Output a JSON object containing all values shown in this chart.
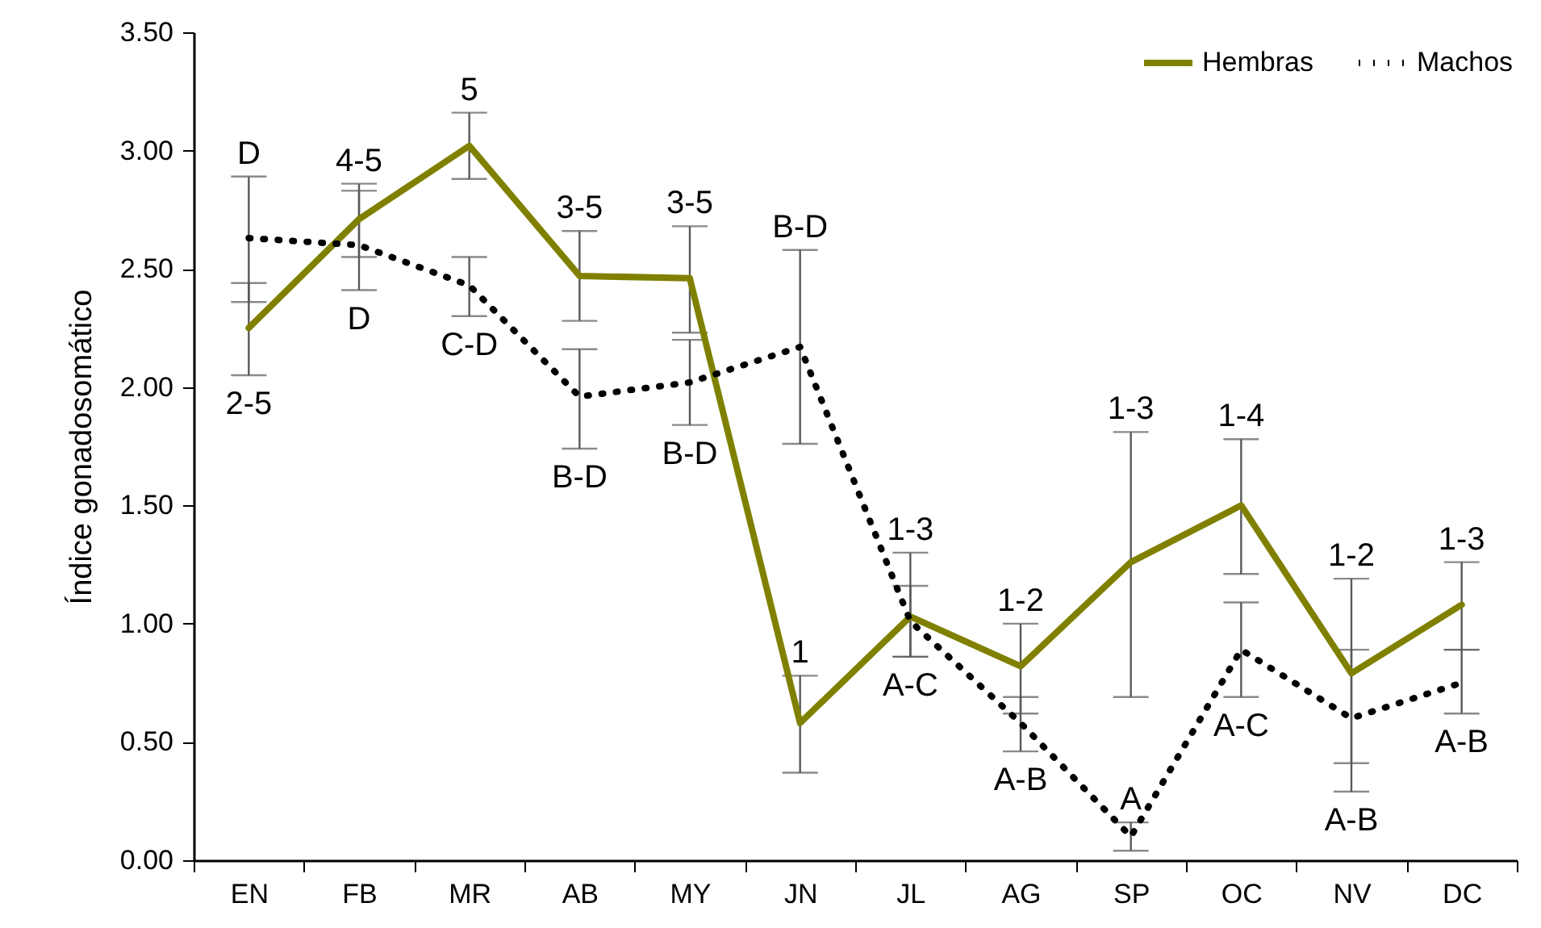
{
  "chart_data": {
    "type": "line",
    "ylabel": "Índice gonadosomático",
    "categories": [
      "EN",
      "FB",
      "MR",
      "AB",
      "MY",
      "JN",
      "JL",
      "AG",
      "SP",
      "OC",
      "NV",
      "DC"
    ],
    "ylim": [
      0,
      3.5
    ],
    "yticks": [
      {
        "value": 0,
        "label": "0.00"
      },
      {
        "value": 0.5,
        "label": "0.50"
      },
      {
        "value": 1,
        "label": "1.00"
      },
      {
        "value": 1.5,
        "label": "1.50"
      },
      {
        "value": 2,
        "label": "2.00"
      },
      {
        "value": 2.5,
        "label": "2.50"
      },
      {
        "value": 3,
        "label": "3.00"
      },
      {
        "value": 3.5,
        "label": "3.50"
      }
    ],
    "series": [
      {
        "name": "Hembras",
        "color": "#808000",
        "line_style": "solid",
        "values": [
          2.25,
          2.71,
          3.02,
          2.47,
          2.46,
          0.58,
          1.03,
          0.82,
          1.26,
          1.5,
          0.79,
          1.08
        ],
        "errors": [
          [
            2.05,
            2.44
          ],
          [
            2.55,
            2.86
          ],
          [
            2.88,
            3.16
          ],
          [
            2.28,
            2.66
          ],
          [
            2.23,
            2.68
          ],
          [
            0.37,
            0.78
          ],
          [
            0.86,
            1.3
          ],
          [
            0.62,
            1.0
          ],
          [
            0.69,
            1.81
          ],
          [
            1.21,
            1.78
          ],
          [
            0.41,
            1.19
          ],
          [
            0.89,
            1.26
          ]
        ]
      },
      {
        "name": "Machos",
        "color": "#000000",
        "line_style": "dotted",
        "values": [
          2.63,
          2.6,
          2.43,
          1.96,
          2.02,
          2.17,
          1.01,
          0.58,
          0.1,
          0.89,
          0.6,
          0.75
        ],
        "errors": [
          [
            2.36,
            2.89
          ],
          [
            2.41,
            2.83
          ],
          [
            2.3,
            2.55
          ],
          [
            1.74,
            2.16
          ],
          [
            1.84,
            2.2
          ],
          [
            1.76,
            2.58
          ],
          [
            0.86,
            1.16
          ],
          [
            0.46,
            0.69
          ],
          [
            0.04,
            0.16
          ],
          [
            0.69,
            1.09
          ],
          [
            0.29,
            0.89
          ],
          [
            0.62,
            0.89
          ]
        ]
      }
    ],
    "annotations": [
      {
        "text": "D",
        "x": "EN",
        "y": 2.89
      },
      {
        "text": "2-5",
        "x": "EN",
        "y": 2.05
      },
      {
        "text": "4-5",
        "x": "FB",
        "y": 2.86
      },
      {
        "text": "D",
        "x": "FB",
        "y": 2.41
      },
      {
        "text": "5",
        "x": "MR",
        "y": 3.16
      },
      {
        "text": "C-D",
        "x": "MR",
        "y": 2.3
      },
      {
        "text": "3-5",
        "x": "AB",
        "y": 2.66
      },
      {
        "text": "B-D",
        "x": "AB",
        "y": 1.74
      },
      {
        "text": "3-5",
        "x": "MY",
        "y": 2.68
      },
      {
        "text": "B-D",
        "x": "MY",
        "y": 1.84
      },
      {
        "text": "B-D",
        "x": "JN",
        "y": 2.58
      },
      {
        "text": "1",
        "x": "JN",
        "y": 0.78
      },
      {
        "text": "1-3",
        "x": "JL",
        "y": 1.3
      },
      {
        "text": "A-C",
        "x": "JL",
        "y": 0.86
      },
      {
        "text": "1-2",
        "x": "AG",
        "y": 1.0
      },
      {
        "text": "A-B",
        "x": "AG",
        "y": 0.46
      },
      {
        "text": "1-3",
        "x": "SP",
        "y": 1.81
      },
      {
        "text": "A",
        "x": "SP",
        "y": 0.16
      },
      {
        "text": "1-4",
        "x": "OC",
        "y": 1.78
      },
      {
        "text": "A-C",
        "x": "OC",
        "y": 0.69
      },
      {
        "text": "1-2",
        "x": "NV",
        "y": 1.19
      },
      {
        "text": "A-B",
        "x": "NV",
        "y": 0.29
      },
      {
        "text": "1-3",
        "x": "DC",
        "y": 1.26
      },
      {
        "text": "A-B",
        "x": "DC",
        "y": 0.62
      }
    ],
    "legend": "top right",
    "grid": false,
    "marker": "none"
  }
}
